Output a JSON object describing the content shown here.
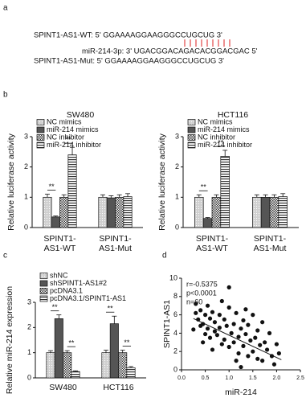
{
  "panel_labels": [
    "a",
    "b",
    "c",
    "d"
  ],
  "panel_a": {
    "lines": [
      "SPINT1-AS1-WT: 5' GGAAAAGGAAGGGCCUGCUG 3'",
      "miR-214-3p: 3' UGACGGACAGACACGGACGAC 5'",
      "SPINT1-AS1-Mut: 5' GGAAAAGGAAGGGCCUGCUG 3'"
    ]
  },
  "chart_data": [
    {
      "type": "bar",
      "title": "SW480",
      "ylabel": "Relative luciferase activity",
      "categories": [
        [
          "SPINT1-",
          "AS1-WT"
        ],
        [
          "SPINT1-",
          "AS1-Mut"
        ]
      ],
      "series": [
        {
          "name": "NC mimics",
          "color": "#cfcfcf",
          "pattern": "dots",
          "values": [
            1.0,
            1.0
          ],
          "errors": [
            0.1,
            0.08
          ]
        },
        {
          "name": "miR-214 mimics",
          "color": "#555555",
          "pattern": "solid",
          "values": [
            0.35,
            0.98
          ],
          "errors": [
            0.03,
            0.07
          ]
        },
        {
          "name": "NC inhibitor",
          "color": "#333333",
          "pattern": "checker",
          "values": [
            1.0,
            1.0
          ],
          "errors": [
            0.08,
            0.08
          ]
        },
        {
          "name": "miR-214 inhibitor",
          "color": "#333333",
          "pattern": "hlines",
          "values": [
            2.4,
            1.02
          ],
          "errors": [
            0.25,
            0.1
          ]
        }
      ],
      "annotations": [
        {
          "text": "**",
          "category": 0,
          "series": [
            0,
            1
          ]
        },
        {
          "text": "**",
          "category": 0,
          "series": [
            2,
            3
          ]
        }
      ],
      "ylim": [
        0,
        3
      ],
      "yticks": [
        0,
        1,
        2,
        3
      ]
    },
    {
      "type": "bar",
      "title": "HCT116",
      "ylabel": "Relative luciferase activity",
      "categories": [
        [
          "SPINT1-",
          "AS1-WT"
        ],
        [
          "SPINT1-",
          "AS1-Mut"
        ]
      ],
      "series": [
        {
          "name": "NC mimics",
          "color": "#cfcfcf",
          "pattern": "dots",
          "values": [
            1.0,
            1.0
          ],
          "errors": [
            0.08,
            0.08
          ]
        },
        {
          "name": "miR-214 mimics",
          "color": "#555555",
          "pattern": "solid",
          "values": [
            0.3,
            1.0
          ],
          "errors": [
            0.03,
            0.08
          ]
        },
        {
          "name": "NC inhibitor",
          "color": "#333333",
          "pattern": "checker",
          "values": [
            1.0,
            1.0
          ],
          "errors": [
            0.08,
            0.08
          ]
        },
        {
          "name": "miR-214 inhibitor",
          "color": "#333333",
          "pattern": "hlines",
          "values": [
            2.35,
            1.02
          ],
          "errors": [
            0.2,
            0.1
          ]
        }
      ],
      "annotations": [
        {
          "text": "**",
          "category": 0,
          "series": [
            0,
            1
          ]
        },
        {
          "text": "**",
          "category": 0,
          "series": [
            2,
            3
          ]
        }
      ],
      "ylim": [
        0,
        3
      ],
      "yticks": [
        0,
        1,
        2,
        3
      ]
    },
    {
      "type": "bar",
      "ylabel": "Relative miR-214 expression",
      "categories": [
        "SW480",
        "HCT116"
      ],
      "series": [
        {
          "name": "shNC",
          "color": "#cfcfcf",
          "pattern": "dots",
          "values": [
            1.0,
            1.0
          ],
          "errors": [
            0.08,
            0.1
          ]
        },
        {
          "name": "shSPINT1-AS1#2",
          "color": "#555555",
          "pattern": "solid",
          "values": [
            2.35,
            2.15
          ],
          "errors": [
            0.15,
            0.3
          ]
        },
        {
          "name": "pcDNA3.1",
          "color": "#333333",
          "pattern": "checker",
          "values": [
            1.0,
            1.0
          ],
          "errors": [
            0.08,
            0.1
          ]
        },
        {
          "name": "pcDNA3.1/SPINT1-AS1",
          "color": "#333333",
          "pattern": "hlines",
          "values": [
            0.25,
            0.4
          ],
          "errors": [
            0.03,
            0.05
          ]
        }
      ],
      "annotations": [
        {
          "text": "**",
          "category": 0,
          "series": [
            0,
            1
          ]
        },
        {
          "text": "**",
          "category": 0,
          "series": [
            2,
            3
          ]
        },
        {
          "text": "**",
          "category": 1,
          "series": [
            0,
            1
          ]
        },
        {
          "text": "**",
          "category": 1,
          "series": [
            2,
            3
          ]
        }
      ],
      "ylim": [
        0,
        3
      ],
      "yticks": [
        0,
        1,
        2,
        3
      ]
    },
    {
      "type": "scatter",
      "xlabel": "miR-214",
      "ylabel": "SPINT1-AS1",
      "annotations": [
        "r=-0.5375",
        "p<0.0001",
        "n=60"
      ],
      "x": [
        0.3,
        0.35,
        0.4,
        0.4,
        0.45,
        0.5,
        0.5,
        0.55,
        0.6,
        0.6,
        0.65,
        0.7,
        0.7,
        0.75,
        0.8,
        0.8,
        0.85,
        0.9,
        0.9,
        0.95,
        1.0,
        1.0,
        1.05,
        1.1,
        1.1,
        1.15,
        1.2,
        1.2,
        1.25,
        1.3,
        1.3,
        1.35,
        1.4,
        1.4,
        1.45,
        1.5,
        1.5,
        1.55,
        1.6,
        1.6,
        1.65,
        1.7,
        1.7,
        1.75,
        1.8,
        1.85,
        1.9,
        1.95,
        2.0,
        2.05,
        0.25,
        0.3,
        0.55,
        0.65,
        0.85,
        1.0,
        1.15,
        1.25,
        0.45,
        1.35
      ],
      "values": [
        6.2,
        5.5,
        4.8,
        6.5,
        5.0,
        3.9,
        6.0,
        4.5,
        5.6,
        3.5,
        6.3,
        4.2,
        5.2,
        3.8,
        6.0,
        4.6,
        2.8,
        5.5,
        3.3,
        4.8,
        6.8,
        2.5,
        4.0,
        5.0,
        3.0,
        6.2,
        3.6,
        1.8,
        4.5,
        5.4,
        2.6,
        3.9,
        1.5,
        4.9,
        3.2,
        6.0,
        2.0,
        3.5,
        1.2,
        4.3,
        2.7,
        5.2,
        1.0,
        3.0,
        2.2,
        4.0,
        1.5,
        0.6,
        2.8,
        1.8,
        4.4,
        7.2,
        7.0,
        2.2,
        7.5,
        9.0,
        1.0,
        0.3,
        3.0,
        6.6
      ],
      "color": "#111111",
      "fit": {
        "x": [
          0.25,
          2.1
        ],
        "y": [
          5.6,
          1.1
        ]
      },
      "xlim": [
        0,
        2.5
      ],
      "xticks": [
        {
          "value": 0,
          "label": "0.0"
        },
        0.5,
        {
          "value": 1,
          "label": "1.0"
        },
        1.5,
        {
          "value": 2,
          "label": "2.0"
        },
        2.5
      ],
      "ylim": [
        0,
        10
      ],
      "yticks": [
        0,
        2,
        4,
        6,
        8,
        10
      ]
    }
  ]
}
